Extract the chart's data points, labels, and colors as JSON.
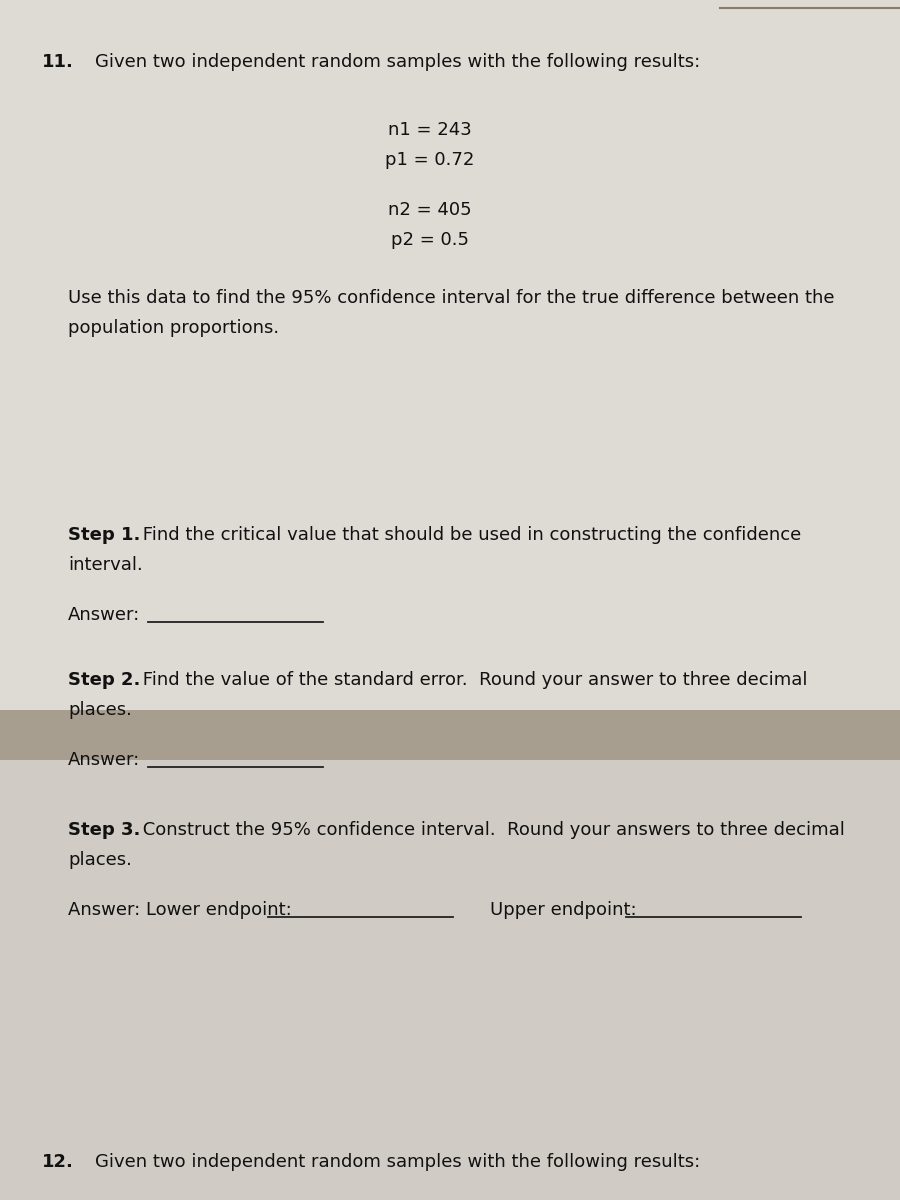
{
  "bg_color": "#b8ae9e",
  "upper_paper_color": "#dedad4",
  "lower_paper_color": "#d0cbc4",
  "fold_color": "#a89e90",
  "fold_shadow_color": "#c0b8ac",
  "line_color": "#222222",
  "q11_num": "11.",
  "q11_header": "Given two independent random samples with the following results:",
  "n1_line": "n1 = 243",
  "p1_line": "p1 = 0.72",
  "n2_line": "n2 = 405",
  "p2_line": "p2 = 0.5",
  "use_line1": "Use this data to find the 95% confidence interval for the true difference between the",
  "use_line2": "population proportions.",
  "step1_bold": "Step 1.",
  "step1_rest": " Find the critical value that should be used in constructing the confidence",
  "step1_line2": "interval.",
  "answer_label": "Answer:",
  "step2_bold": "Step 2.",
  "step2_rest": " Find the value of the standard error.  Round your answer to three decimal",
  "step2_line2": "places.",
  "step3_bold": "Step 3.",
  "step3_rest": " Construct the 95% confidence interval.  Round your answers to three decimal",
  "step3_line2": "places.",
  "ans3_label": "Answer: Lower endpoint:",
  "upper_ep_label": "Upper endpoint:",
  "q12_num": "12.",
  "q12_header": "Given two independent random samples with the following results:"
}
